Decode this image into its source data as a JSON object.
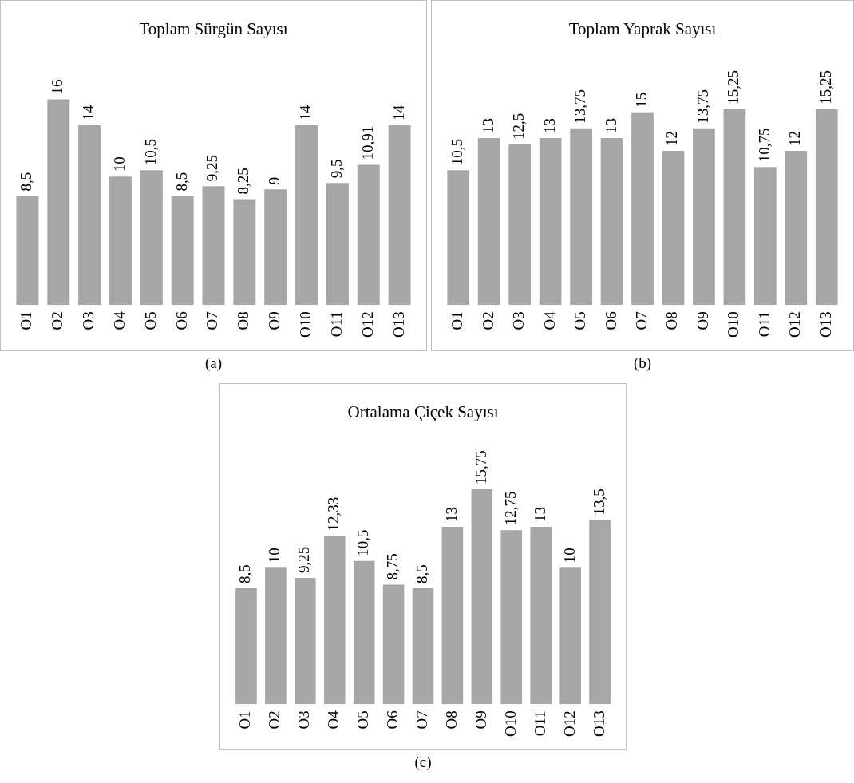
{
  "chart_data": [
    {
      "type": "bar",
      "title": "Toplam Sürgün Sayısı",
      "categories": [
        "O1",
        "O2",
        "O3",
        "O4",
        "O5",
        "O6",
        "O7",
        "O8",
        "O9",
        "O10",
        "O11",
        "O12",
        "O13"
      ],
      "values": [
        8.5,
        16,
        14,
        10,
        10.5,
        8.5,
        9.25,
        8.25,
        9,
        14,
        9.5,
        10.91,
        14
      ],
      "value_labels": [
        "8,5",
        "16",
        "14",
        "10",
        "10,5",
        "8,5",
        "9,25",
        "8,25",
        "9",
        "14",
        "9,5",
        "10,91",
        "14"
      ],
      "color": "#a6a6a6",
      "grid": false,
      "legend": false,
      "tick_labels": "x",
      "annotations": [
        "(a)"
      ]
    },
    {
      "type": "bar",
      "title": "Toplam Yaprak Sayısı",
      "categories": [
        "O1",
        "O2",
        "O3",
        "O4",
        "O5",
        "O6",
        "O7",
        "O8",
        "O9",
        "O10",
        "O11",
        "O12",
        "O13"
      ],
      "values": [
        10.5,
        13,
        12.5,
        13,
        13.75,
        13,
        15,
        12,
        13.75,
        15.25,
        10.75,
        12,
        15.25
      ],
      "value_labels": [
        "10,5",
        "13",
        "12,5",
        "13",
        "13,75",
        "13",
        "15",
        "12",
        "13,75",
        "15,25",
        "10,75",
        "12",
        "15,25"
      ],
      "color": "#a6a6a6",
      "grid": false,
      "legend": false,
      "tick_labels": "x",
      "annotations": [
        "(b)"
      ]
    },
    {
      "type": "bar",
      "title": "Ortalama Çiçek Sayısı",
      "categories": [
        "O1",
        "O2",
        "O3",
        "O4",
        "O5",
        "O6",
        "O7",
        "O8",
        "O9",
        "O10",
        "O11",
        "O12",
        "O13"
      ],
      "values": [
        8.5,
        10,
        9.25,
        12.33,
        10.5,
        8.75,
        8.5,
        13,
        15.75,
        12.75,
        13,
        10,
        13.5
      ],
      "value_labels": [
        "8,5",
        "10",
        "9,25",
        "12,33",
        "10,5",
        "8,75",
        "8,5",
        "13",
        "15,75",
        "12,75",
        "13",
        "10",
        "13,5"
      ],
      "color": "#a6a6a6",
      "grid": false,
      "legend": false,
      "tick_labels": "x",
      "annotations": [
        "(c)"
      ]
    }
  ]
}
